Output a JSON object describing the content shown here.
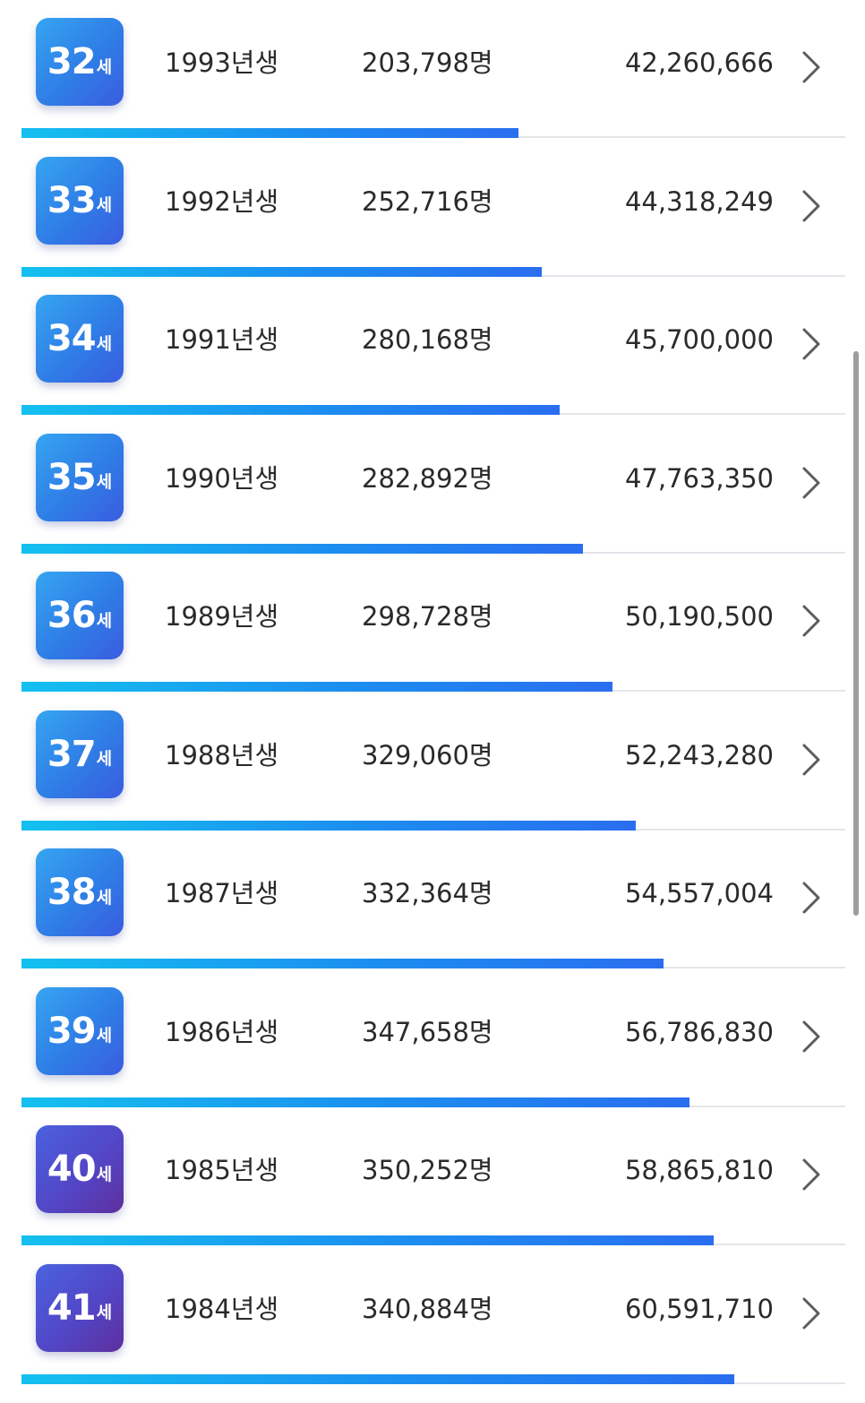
{
  "rows": [
    {
      "age": "32",
      "unit": "세",
      "year": "1993년생",
      "count": "203,798명",
      "amount": "42,260,666",
      "bar_fraction": 0.603,
      "badge_color": "#2f7de6"
    },
    {
      "age": "33",
      "unit": "세",
      "year": "1992년생",
      "count": "252,716명",
      "amount": "44,318,249",
      "bar_fraction": 0.632,
      "badge_color": "#2f7de6"
    },
    {
      "age": "34",
      "unit": "세",
      "year": "1991년생",
      "count": "280,168명",
      "amount": "45,700,000",
      "bar_fraction": 0.653,
      "badge_color": "#2f7de6"
    },
    {
      "age": "35",
      "unit": "세",
      "year": "1990년생",
      "count": "282,892명",
      "amount": "47,763,350",
      "bar_fraction": 0.682,
      "badge_color": "#2f7de6"
    },
    {
      "age": "36",
      "unit": "세",
      "year": "1989년생",
      "count": "298,728명",
      "amount": "50,190,500",
      "bar_fraction": 0.717,
      "badge_color": "#2f7de6"
    },
    {
      "age": "37",
      "unit": "세",
      "year": "1988년생",
      "count": "329,060명",
      "amount": "52,243,280",
      "bar_fraction": 0.746,
      "badge_color": "#2f7de6"
    },
    {
      "age": "38",
      "unit": "세",
      "year": "1987년생",
      "count": "332,364명",
      "amount": "54,557,004",
      "bar_fraction": 0.779,
      "badge_color": "#2f7de6"
    },
    {
      "age": "39",
      "unit": "세",
      "year": "1986년생",
      "count": "347,658명",
      "amount": "56,786,830",
      "bar_fraction": 0.811,
      "badge_color": "#2f7de6"
    },
    {
      "age": "40",
      "unit": "세",
      "year": "1985년생",
      "count": "350,252명",
      "amount": "58,865,810",
      "bar_fraction": 0.84,
      "badge_color": "#5246c6"
    },
    {
      "age": "41",
      "unit": "세",
      "year": "1984년생",
      "count": "340,884명",
      "amount": "60,591,710",
      "bar_fraction": 0.865,
      "badge_color": "#5246c6"
    }
  ],
  "icons": {
    "row_action": "chevron-right-icon"
  }
}
